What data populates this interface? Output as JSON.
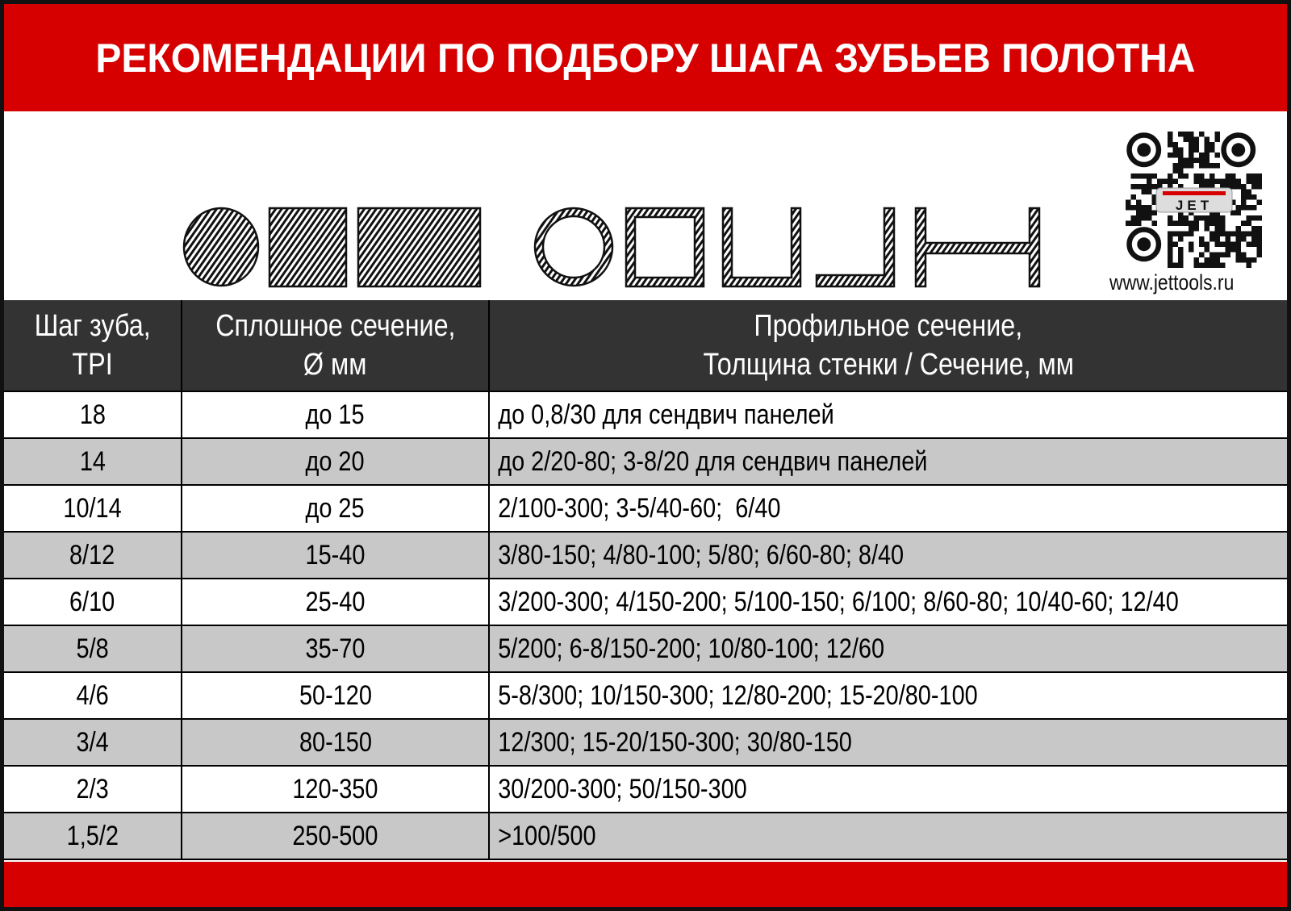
{
  "title": "РЕКОМЕНДАЦИИ ПО ПОДБОРУ ШАГА ЗУБЬЕВ ПОЛОТНА",
  "logo_text": "JET",
  "website": "www.jettools.ru",
  "colors": {
    "brand_red": "#d60000",
    "header_bg": "#333333",
    "alt_row": "#c8c8c8"
  },
  "shapes": [
    "solid-round",
    "solid-square",
    "solid-rectangle",
    "round-tube",
    "square-tube",
    "channel",
    "angle",
    "i-beam"
  ],
  "table": {
    "headers": [
      {
        "line1": "Шаг зуба,",
        "line2": "TPI"
      },
      {
        "line1": "Сплошное сечение,",
        "line2": "Ø мм"
      },
      {
        "line1": "Профильное сечение,",
        "line2": "Толщина стенки / Сечение, мм"
      }
    ],
    "rows": [
      [
        "18",
        "до 15",
        "до 0,8/30 для сендвич панелей"
      ],
      [
        "14",
        "до 20",
        "до 2/20-80; 3-8/20 для сендвич панелей"
      ],
      [
        "10/14",
        "до 25",
        "2/100-300; 3-5/40-60;  6/40"
      ],
      [
        "8/12",
        "15-40",
        "3/80-150; 4/80-100; 5/80; 6/60-80; 8/40"
      ],
      [
        "6/10",
        "25-40",
        "3/200-300; 4/150-200; 5/100-150; 6/100; 8/60-80; 10/40-60; 12/40"
      ],
      [
        "5/8",
        "35-70",
        "5/200; 6-8/150-200; 10/80-100; 12/60"
      ],
      [
        "4/6",
        "50-120",
        "5-8/300; 10/150-300; 12/80-200; 15-20/80-100"
      ],
      [
        "3/4",
        "80-150",
        "12/300; 15-20/150-300; 30/80-150"
      ],
      [
        "2/3",
        "120-350",
        "30/200-300; 50/150-300"
      ],
      [
        "1,5/2",
        "250-500",
        ">100/500"
      ]
    ]
  }
}
